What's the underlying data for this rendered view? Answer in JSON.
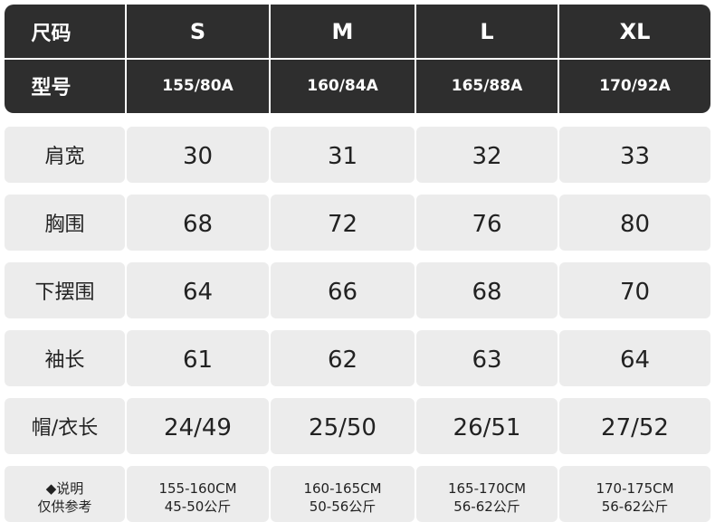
{
  "header": {
    "size_label": "尺码",
    "sizes": [
      "S",
      "M",
      "L",
      "XL"
    ],
    "model_label": "型号",
    "models": [
      "155/80A",
      "160/84A",
      "165/88A",
      "170/92A"
    ]
  },
  "rows": [
    {
      "label": "肩宽",
      "values": [
        30,
        31,
        32,
        33
      ]
    },
    {
      "label": "胸围",
      "values": [
        68,
        72,
        76,
        80
      ]
    },
    {
      "label": "下摆围",
      "values": [
        64,
        66,
        68,
        70
      ]
    },
    {
      "label": "袖长",
      "values": [
        61,
        62,
        63,
        64
      ]
    },
    {
      "label": "帽/衣长",
      "values": [
        "24/49",
        "25/50",
        "26/51",
        "27/52"
      ]
    }
  ],
  "note": {
    "label": [
      "◆说明",
      "仅供参考"
    ],
    "cells": [
      [
        "155-160CM",
        "45-50公斤"
      ],
      [
        "160-165CM",
        "50-56公斤"
      ],
      [
        "165-170CM",
        "56-62公斤"
      ],
      [
        "170-175CM",
        "56-62公斤"
      ]
    ]
  }
}
